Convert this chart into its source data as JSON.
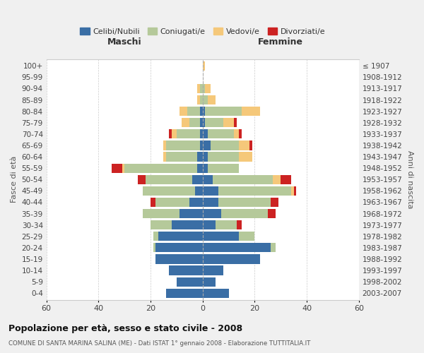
{
  "age_groups": [
    "0-4",
    "5-9",
    "10-14",
    "15-19",
    "20-24",
    "25-29",
    "30-34",
    "35-39",
    "40-44",
    "45-49",
    "50-54",
    "55-59",
    "60-64",
    "65-69",
    "70-74",
    "75-79",
    "80-84",
    "85-89",
    "90-94",
    "95-99",
    "100+"
  ],
  "birth_years": [
    "2003-2007",
    "1998-2002",
    "1993-1997",
    "1988-1992",
    "1983-1987",
    "1978-1982",
    "1973-1977",
    "1968-1972",
    "1963-1967",
    "1958-1962",
    "1953-1957",
    "1948-1952",
    "1943-1947",
    "1938-1942",
    "1933-1937",
    "1928-1932",
    "1923-1927",
    "1918-1922",
    "1913-1917",
    "1908-1912",
    "≤ 1907"
  ],
  "colors": {
    "celibi": "#3a6ea5",
    "coniugati": "#b5c99a",
    "vedovi": "#f5c87a",
    "divorziati": "#cc2222"
  },
  "maschi": {
    "celibi": [
      14,
      10,
      13,
      18,
      18,
      17,
      12,
      9,
      5,
      3,
      4,
      2,
      2,
      1,
      1,
      1,
      1,
      0,
      0,
      0,
      0
    ],
    "coniugati": [
      0,
      0,
      0,
      0,
      1,
      2,
      8,
      14,
      13,
      20,
      18,
      28,
      12,
      13,
      9,
      4,
      5,
      1,
      1,
      0,
      0
    ],
    "vedovi": [
      0,
      0,
      0,
      0,
      0,
      0,
      0,
      0,
      0,
      0,
      0,
      1,
      1,
      1,
      2,
      3,
      3,
      1,
      1,
      0,
      0
    ],
    "divorziati": [
      0,
      0,
      0,
      0,
      0,
      0,
      0,
      0,
      2,
      0,
      3,
      4,
      0,
      0,
      1,
      0,
      0,
      0,
      0,
      0,
      0
    ]
  },
  "femmine": {
    "celibi": [
      10,
      5,
      8,
      22,
      26,
      14,
      5,
      7,
      6,
      6,
      4,
      2,
      2,
      3,
      2,
      1,
      1,
      0,
      0,
      0,
      0
    ],
    "coniugati": [
      0,
      0,
      0,
      0,
      2,
      6,
      8,
      18,
      20,
      28,
      23,
      12,
      12,
      11,
      10,
      7,
      14,
      2,
      1,
      0,
      0
    ],
    "vedovi": [
      0,
      0,
      0,
      0,
      0,
      0,
      0,
      0,
      0,
      1,
      3,
      0,
      5,
      4,
      2,
      4,
      7,
      3,
      2,
      0,
      1
    ],
    "divorziati": [
      0,
      0,
      0,
      0,
      0,
      0,
      2,
      3,
      3,
      1,
      4,
      0,
      0,
      1,
      1,
      1,
      0,
      0,
      0,
      0,
      0
    ]
  },
  "xlim": 60,
  "title": "Popolazione per età, sesso e stato civile - 2008",
  "subtitle": "COMUNE DI SANTA MARINA SALINA (ME) - Dati ISTAT 1° gennaio 2008 - Elaborazione TUTTITALIA.IT",
  "ylabel_left": "Fasce di età",
  "ylabel_right": "Anni di nascita",
  "xlabel_left": "Maschi",
  "xlabel_right": "Femmine",
  "bg_color": "#f0f0f0",
  "plot_bg": "#ffffff"
}
